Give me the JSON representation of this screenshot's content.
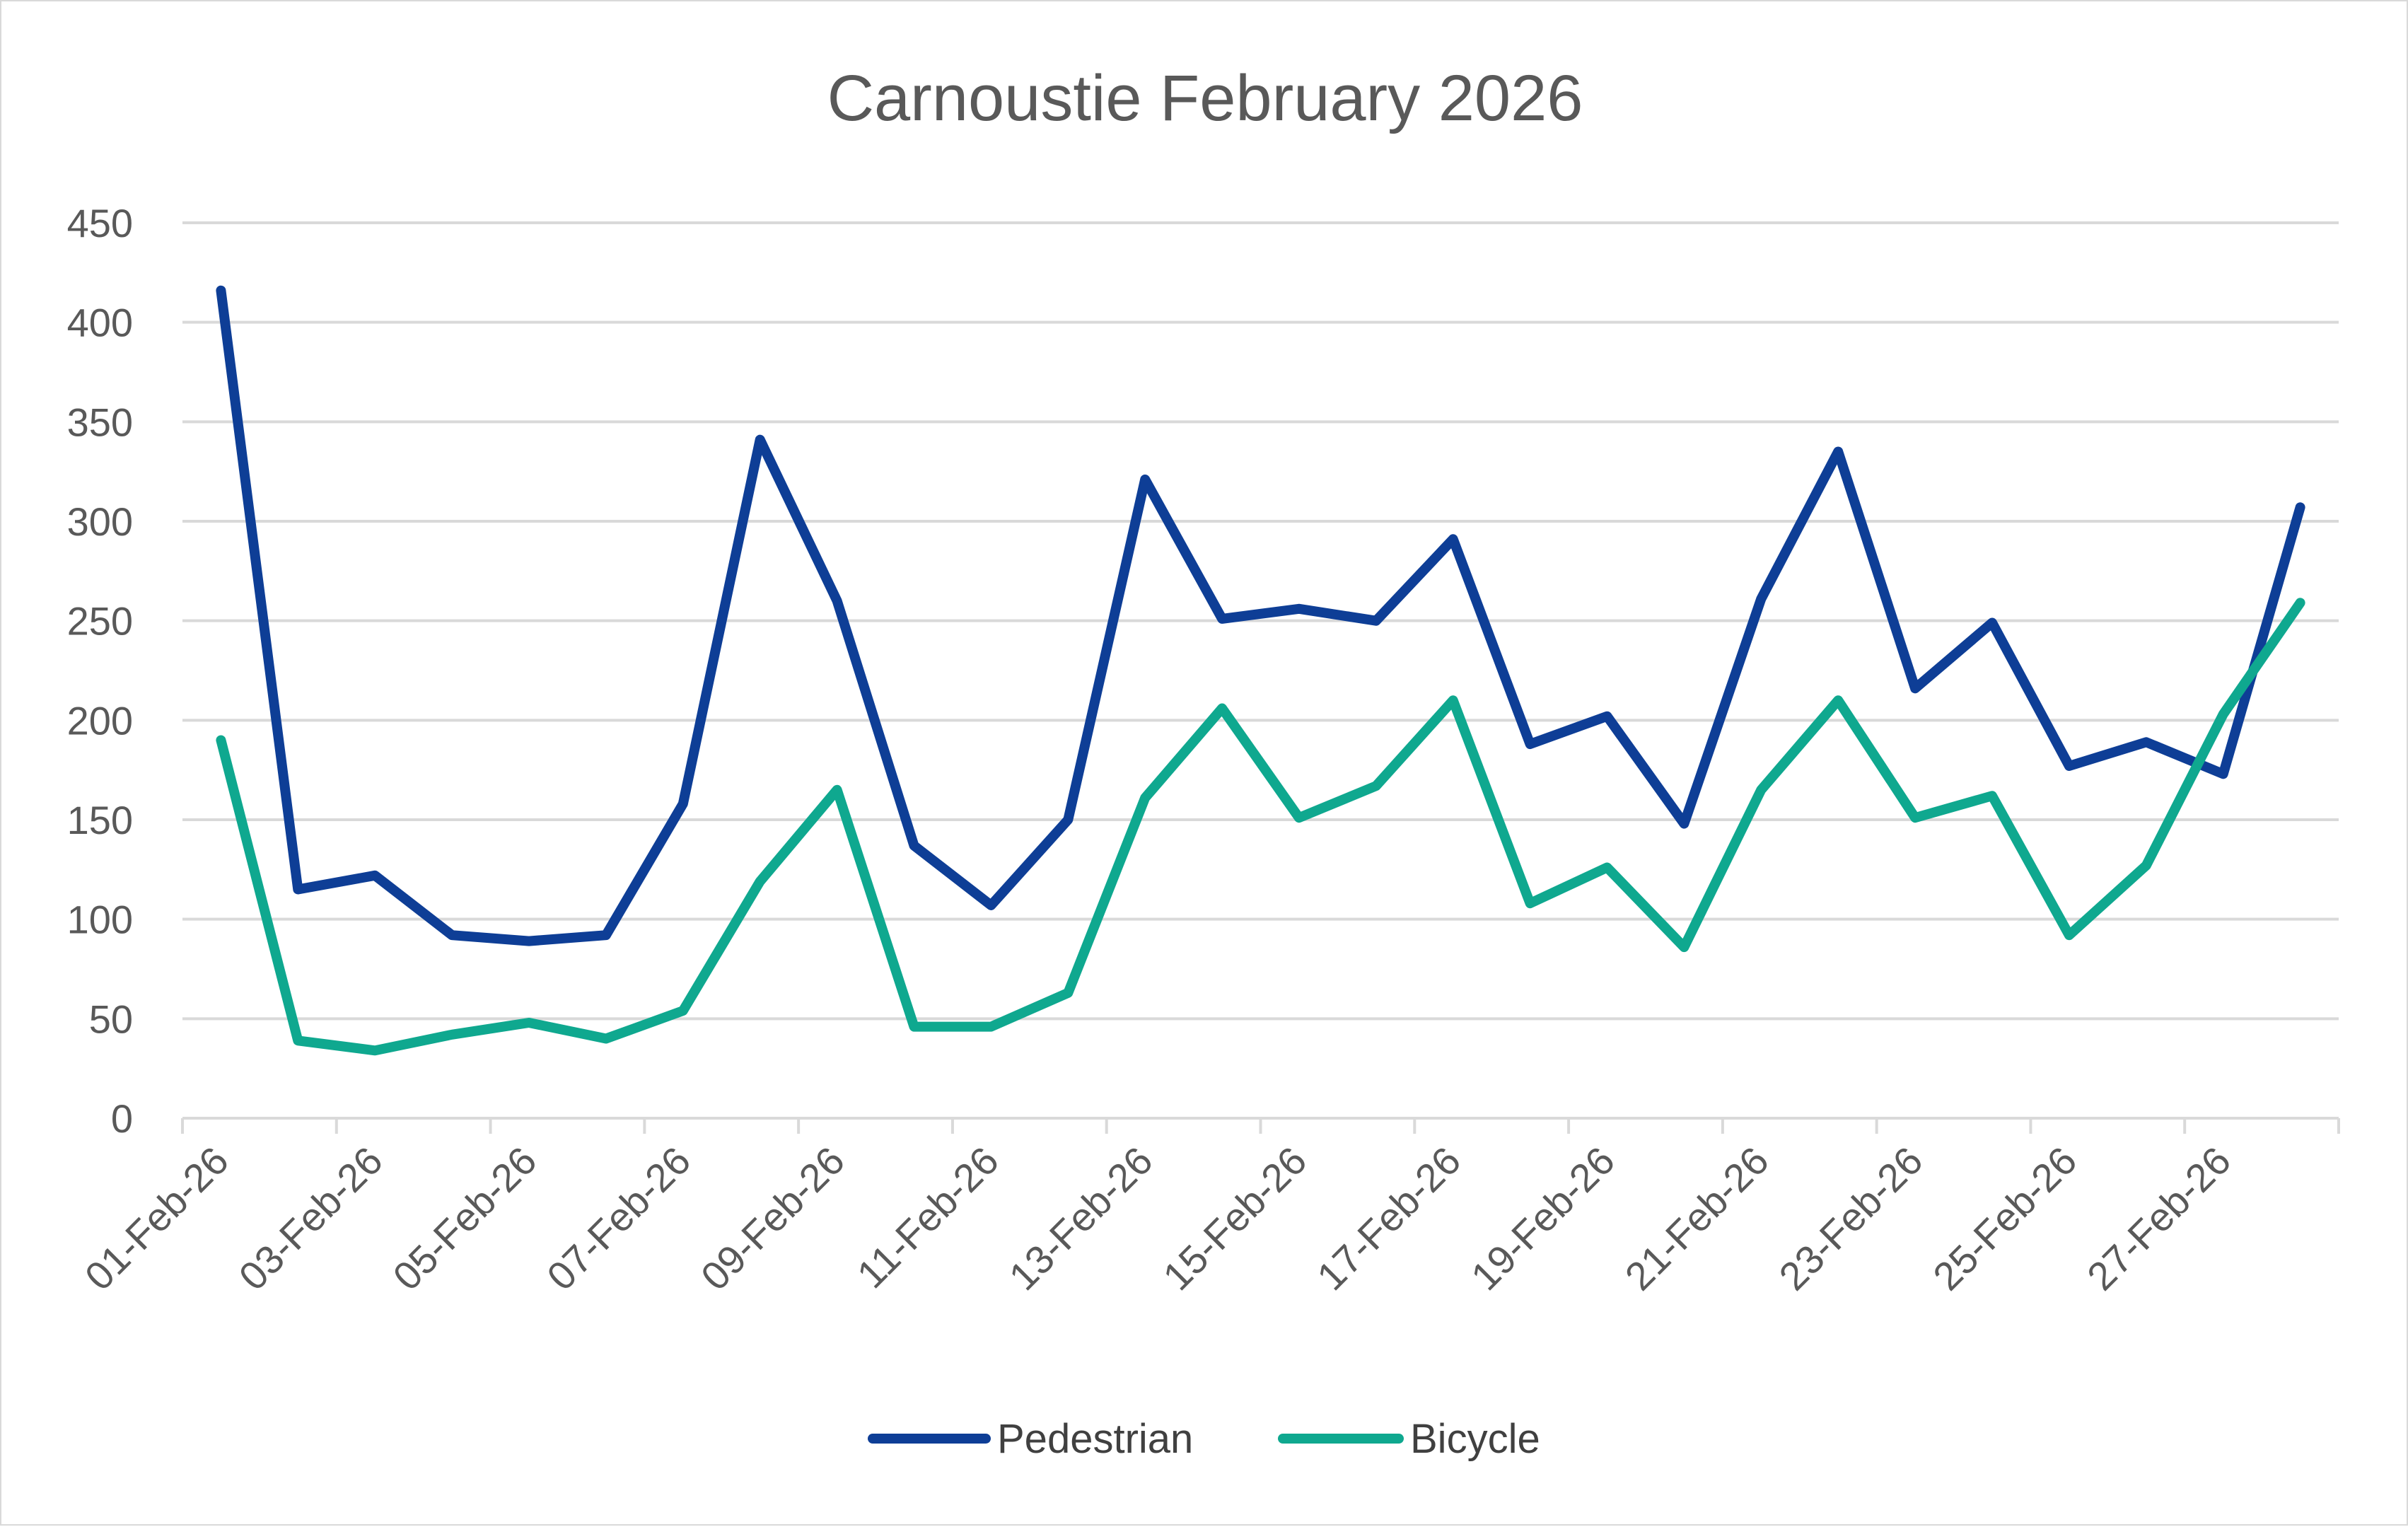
{
  "chart_data": {
    "type": "line",
    "title": "Carnoustie February 2026",
    "xlabel": "",
    "ylabel": "",
    "ylim": [
      0,
      450
    ],
    "yticks": [
      0,
      50,
      100,
      150,
      200,
      250,
      300,
      350,
      400,
      450
    ],
    "grid": true,
    "legend": "bottom",
    "x": [
      "01-Feb-26",
      "02-Feb-26",
      "03-Feb-26",
      "04-Feb-26",
      "05-Feb-26",
      "06-Feb-26",
      "07-Feb-26",
      "08-Feb-26",
      "09-Feb-26",
      "10-Feb-26",
      "11-Feb-26",
      "12-Feb-26",
      "13-Feb-26",
      "14-Feb-26",
      "15-Feb-26",
      "16-Feb-26",
      "17-Feb-26",
      "18-Feb-26",
      "19-Feb-26",
      "20-Feb-26",
      "21-Feb-26",
      "22-Feb-26",
      "23-Feb-26",
      "24-Feb-26",
      "25-Feb-26",
      "26-Feb-26",
      "27-Feb-26",
      "28-Feb-26"
    ],
    "xtick_labels": [
      "01-Feb-26",
      "03-Feb-26",
      "05-Feb-26",
      "07-Feb-26",
      "09-Feb-26",
      "11-Feb-26",
      "13-Feb-26",
      "15-Feb-26",
      "17-Feb-26",
      "19-Feb-26",
      "21-Feb-26",
      "23-Feb-26",
      "25-Feb-26",
      "27-Feb-26"
    ],
    "series": [
      {
        "name": "Pedestrian",
        "color": "#0e3e96",
        "values": [
          416,
          115,
          122,
          92,
          89,
          92,
          158,
          341,
          260,
          137,
          107,
          150,
          321,
          251,
          256,
          250,
          291,
          188,
          202,
          148,
          261,
          335,
          216,
          249,
          177,
          189,
          173,
          307
        ]
      },
      {
        "name": "Bicycle",
        "color": "#0fa88f",
        "values": [
          190,
          39,
          34,
          42,
          48,
          40,
          54,
          119,
          165,
          46,
          46,
          63,
          161,
          206,
          151,
          167,
          210,
          108,
          126,
          86,
          165,
          210,
          151,
          162,
          92,
          127,
          203,
          259
        ]
      }
    ]
  }
}
